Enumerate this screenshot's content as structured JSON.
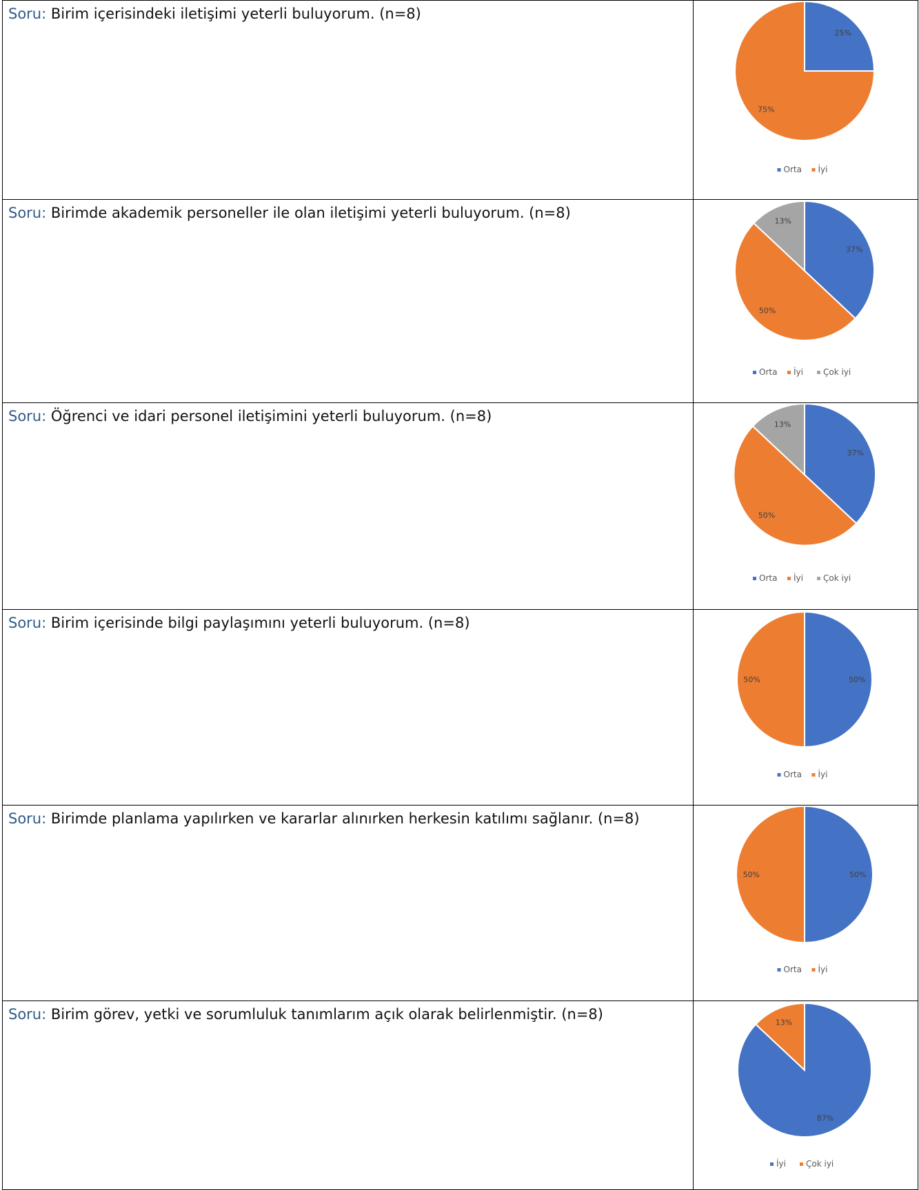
{
  "rows": [
    {
      "prefix": "Soru:",
      "question": "Birim içerisindeki iletişimi yeterli buluyorum. (n=8)"
    },
    {
      "prefix": "Soru:",
      "question": "Birimde akademik personeller ile olan iletişimi yeterli buluyorum. (n=8)"
    },
    {
      "prefix": "Soru:",
      "question": "Öğrenci ve idari personel iletişimini yeterli buluyorum. (n=8)"
    },
    {
      "prefix": "Soru:",
      "question": "Birim içerisinde bilgi paylaşımını yeterli buluyorum. (n=8)"
    },
    {
      "prefix": "Soru:",
      "question": "Birimde planlama yapılırken ve kararlar alınırken herkesin katılımı sağlanır. (n=8)"
    },
    {
      "prefix": "Soru:",
      "question": "Birim görev, yetki ve sorumluluk tanımlarım açık olarak belirlenmiştir. (n=8)"
    }
  ],
  "chart_data": [
    {
      "type": "pie",
      "categories": [
        "Orta",
        "İyi"
      ],
      "values": [
        25,
        75
      ],
      "labels": [
        "25%",
        "75%"
      ],
      "colors": [
        "#4472c4",
        "#ed7d31"
      ],
      "legend_position": "bottom"
    },
    {
      "type": "pie",
      "categories": [
        "Orta",
        "İyi",
        "Çok iyi"
      ],
      "values": [
        37,
        50,
        13
      ],
      "labels": [
        "37%",
        "50%",
        "13%"
      ],
      "colors": [
        "#4472c4",
        "#ed7d31",
        "#a5a5a5"
      ],
      "legend_position": "bottom"
    },
    {
      "type": "pie",
      "categories": [
        "Orta",
        "İyi",
        "Çok iyi"
      ],
      "values": [
        37,
        50,
        13
      ],
      "labels": [
        "37%",
        "50%",
        "13%"
      ],
      "colors": [
        "#4472c4",
        "#ed7d31",
        "#a5a5a5"
      ],
      "legend_position": "bottom"
    },
    {
      "type": "pie",
      "categories": [
        "Orta",
        "İyi"
      ],
      "values": [
        50,
        50
      ],
      "labels": [
        "50%",
        "50%"
      ],
      "colors": [
        "#4472c4",
        "#ed7d31"
      ],
      "legend_position": "bottom"
    },
    {
      "type": "pie",
      "categories": [
        "Orta",
        "İyi"
      ],
      "values": [
        50,
        50
      ],
      "labels": [
        "50%",
        "50%"
      ],
      "colors": [
        "#4472c4",
        "#ed7d31"
      ],
      "legend_position": "bottom"
    },
    {
      "type": "pie",
      "categories": [
        "İyi",
        "Çok iyi"
      ],
      "values": [
        87,
        13
      ],
      "labels": [
        "87%",
        "13%"
      ],
      "colors": [
        "#4472c4",
        "#ed7d31"
      ],
      "legend_position": "bottom"
    }
  ]
}
